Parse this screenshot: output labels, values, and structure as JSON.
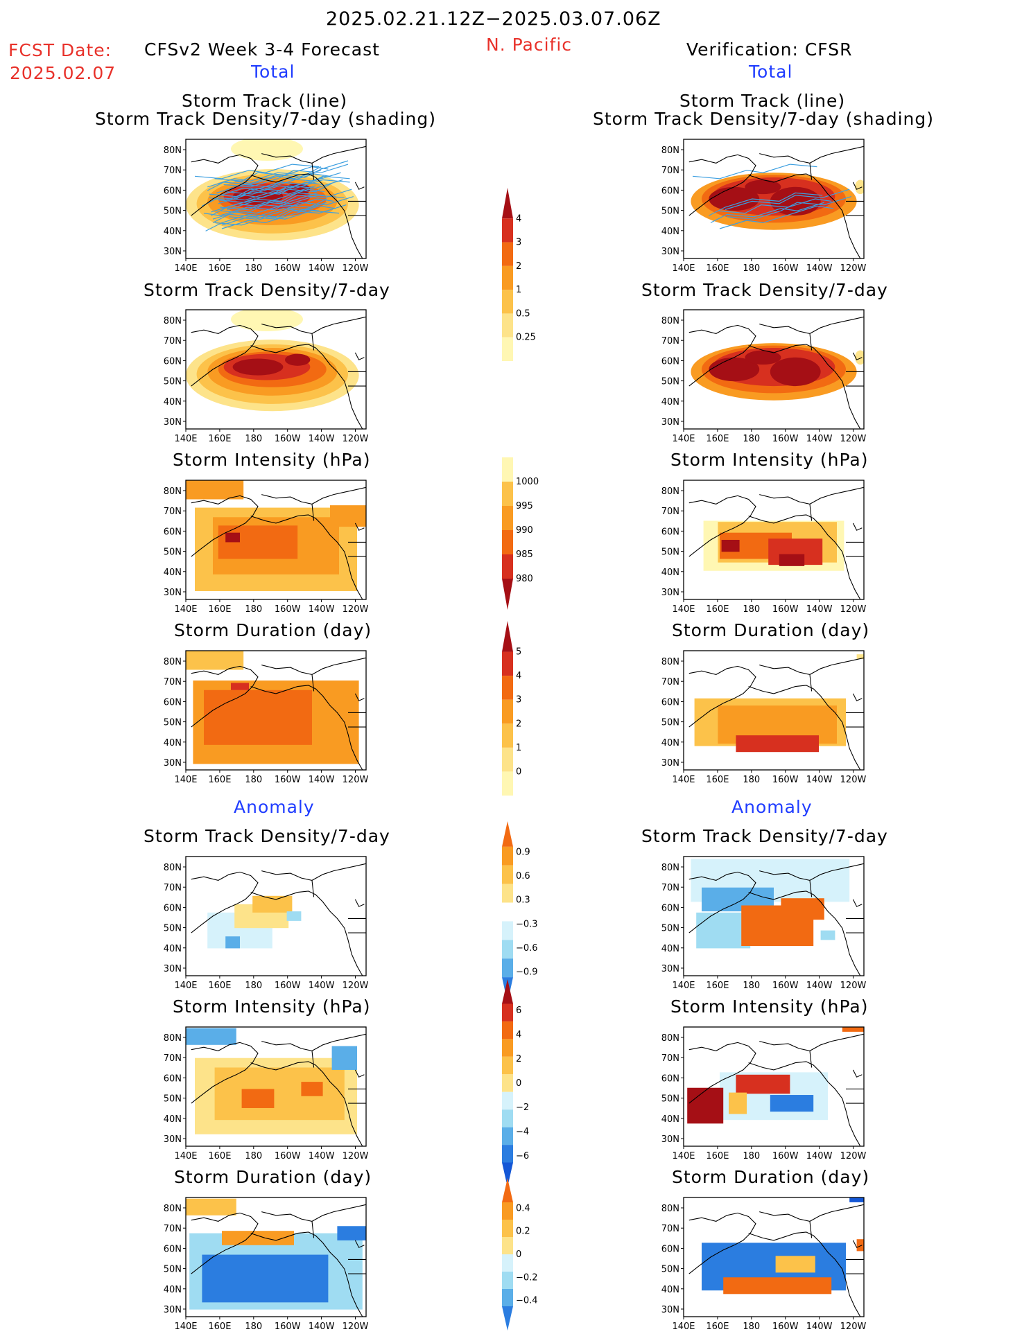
{
  "header": {
    "period": "2025.02.21.12Z−2025.03.07.06Z",
    "fcst_label": "FCST Date:",
    "fcst_date": "2025.02.07",
    "model_title": "CFSv2 Week 3-4 Forecast",
    "region": "N. Pacific",
    "verification": "Verification: CFSR",
    "total_left": "Total",
    "total_right": "Total",
    "anomaly_left": "Anomaly",
    "anomaly_right": "Anomaly"
  },
  "panel_titles": {
    "st_line": "Storm Track (line)",
    "st_shade": "Storm Track Density/7-day (shading)",
    "density": "Storm Track Density/7-day",
    "intensity": "Storm Intensity (hPa)",
    "duration": "Storm Duration (day)"
  },
  "axes": {
    "lat_ticks": [
      "80N",
      "70N",
      "60N",
      "50N",
      "40N",
      "30N"
    ],
    "lon_ticks": [
      "140E",
      "160E",
      "180",
      "160W",
      "140W",
      "120W"
    ]
  },
  "colors": {
    "warm": [
      "#fff7b3",
      "#fde38a",
      "#fcc24a",
      "#f99b22",
      "#f26a12",
      "#d7301f",
      "#a50f15"
    ],
    "cool": [
      "#d6f2fb",
      "#9fdcf2",
      "#5aaee8",
      "#2b7de0",
      "#1457d6"
    ],
    "track_line": "#3d9fe0"
  },
  "chart_data": [
    {
      "type": "heatmap",
      "name": "fc-total-track",
      "region": "N. Pacific",
      "xlim": [
        "140E",
        "120W"
      ],
      "ylim": [
        "25N",
        "85N"
      ],
      "overlay": "storm track lines"
    },
    {
      "type": "heatmap",
      "name": "ver-total-track",
      "region": "N. Pacific",
      "xlim": [
        "140E",
        "120W"
      ],
      "ylim": [
        "25N",
        "85N"
      ],
      "overlay": "storm track lines"
    },
    {
      "type": "heatmap",
      "name": "fc-total-density",
      "xlim": [
        "140E",
        "120W"
      ],
      "ylim": [
        "25N",
        "85N"
      ]
    },
    {
      "type": "heatmap",
      "name": "ver-total-density",
      "xlim": [
        "140E",
        "120W"
      ],
      "ylim": [
        "25N",
        "85N"
      ]
    },
    {
      "type": "heatmap",
      "name": "fc-total-intensity",
      "xlim": [
        "140E",
        "120W"
      ],
      "ylim": [
        "25N",
        "85N"
      ]
    },
    {
      "type": "heatmap",
      "name": "ver-total-intensity",
      "xlim": [
        "140E",
        "120W"
      ],
      "ylim": [
        "25N",
        "85N"
      ]
    },
    {
      "type": "heatmap",
      "name": "fc-total-duration",
      "xlim": [
        "140E",
        "120W"
      ],
      "ylim": [
        "25N",
        "85N"
      ]
    },
    {
      "type": "heatmap",
      "name": "ver-total-duration",
      "xlim": [
        "140E",
        "120W"
      ],
      "ylim": [
        "25N",
        "85N"
      ]
    },
    {
      "type": "heatmap",
      "name": "fc-anom-density",
      "xlim": [
        "140E",
        "120W"
      ],
      "ylim": [
        "25N",
        "85N"
      ]
    },
    {
      "type": "heatmap",
      "name": "ver-anom-density",
      "xlim": [
        "140E",
        "120W"
      ],
      "ylim": [
        "25N",
        "85N"
      ]
    },
    {
      "type": "heatmap",
      "name": "fc-anom-intensity",
      "xlim": [
        "140E",
        "120W"
      ],
      "ylim": [
        "25N",
        "85N"
      ]
    },
    {
      "type": "heatmap",
      "name": "ver-anom-intensity",
      "xlim": [
        "140E",
        "120W"
      ],
      "ylim": [
        "25N",
        "85N"
      ]
    },
    {
      "type": "heatmap",
      "name": "fc-anom-duration",
      "xlim": [
        "140E",
        "120W"
      ],
      "ylim": [
        "25N",
        "85N"
      ]
    },
    {
      "type": "heatmap",
      "name": "ver-anom-duration",
      "xlim": [
        "140E",
        "120W"
      ],
      "ylim": [
        "25N",
        "85N"
      ]
    }
  ],
  "colorbars": [
    {
      "name": "density-total",
      "labels": [
        "4",
        "3",
        "2",
        "1",
        "0.5",
        "0.25"
      ],
      "colors": [
        "#a50f15",
        "#d7301f",
        "#f26a12",
        "#f99b22",
        "#fcc24a",
        "#fde38a",
        "#fff7b3"
      ],
      "arrow_top": true,
      "arrow_bottom": false
    },
    {
      "name": "intensity-total",
      "labels": [
        "1000",
        "995",
        "990",
        "985",
        "980"
      ],
      "colors": [
        "#fff7b3",
        "#fcc24a",
        "#f99b22",
        "#f26a12",
        "#d7301f",
        "#a50f15"
      ],
      "arrow_top": false,
      "arrow_bottom": true
    },
    {
      "name": "duration-total",
      "labels": [
        "5",
        "4",
        "3",
        "2",
        "1",
        "0"
      ],
      "colors": [
        "#a50f15",
        "#d7301f",
        "#f26a12",
        "#f99b22",
        "#fcc24a",
        "#fde38a",
        "#fff7b3"
      ],
      "arrow_top": true,
      "arrow_bottom": false
    },
    {
      "name": "density-anom",
      "labels": [
        "0.9",
        "0.6",
        "0.3",
        "−0.3",
        "−0.6",
        "−0.9"
      ],
      "colors": [
        "#f26a12",
        "#f99b22",
        "#fcc24a",
        "#fde38a",
        "#ffffff",
        "#d6f2fb",
        "#9fdcf2",
        "#5aaee8",
        "#2b7de0"
      ],
      "arrow_top": true,
      "arrow_bottom": true
    },
    {
      "name": "intensity-anom",
      "labels": [
        "6",
        "4",
        "2",
        "0",
        "−2",
        "−4",
        "−6"
      ],
      "colors": [
        "#a50f15",
        "#d7301f",
        "#f26a12",
        "#f99b22",
        "#fcc24a",
        "#fde38a",
        "#d6f2fb",
        "#9fdcf2",
        "#5aaee8",
        "#2b7de0",
        "#1457d6"
      ],
      "arrow_top": true,
      "arrow_bottom": true
    },
    {
      "name": "duration-anom",
      "labels": [
        "0.4",
        "0.2",
        "0",
        "−0.2",
        "−0.4"
      ],
      "colors": [
        "#f26a12",
        "#f99b22",
        "#fcc24a",
        "#fde38a",
        "#d6f2fb",
        "#9fdcf2",
        "#5aaee8",
        "#2b7de0"
      ],
      "arrow_top": true,
      "arrow_bottom": true
    }
  ]
}
